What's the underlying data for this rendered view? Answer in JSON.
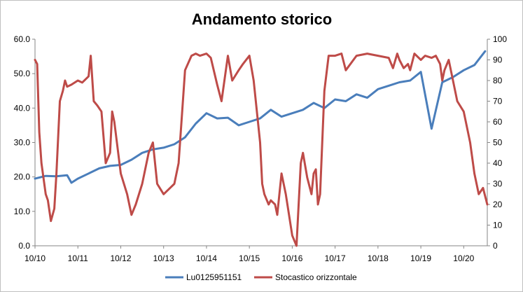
{
  "chart_data": {
    "type": "line",
    "title": "Andamento storico",
    "x_tick_labels": [
      "10/10",
      "10/11",
      "10/12",
      "10/13",
      "10/14",
      "10/15",
      "10/16",
      "10/17",
      "10/18",
      "10/19",
      "10/20"
    ],
    "x_range": [
      2010.75,
      2021.3
    ],
    "y_left": {
      "range": [
        0,
        60
      ],
      "ticks": [
        "0.0",
        "10.0",
        "20.0",
        "30.0",
        "40.0",
        "50.0",
        "60.0"
      ]
    },
    "y_right": {
      "range": [
        0,
        100
      ],
      "ticks": [
        "0",
        "10",
        "20",
        "30",
        "40",
        "50",
        "60",
        "70",
        "80",
        "90",
        "100"
      ]
    },
    "grid": false,
    "legend_position": "bottom",
    "series": [
      {
        "name": "Lu0125951151",
        "axis": "left",
        "color": "#4a7ebb",
        "x": [
          2010.75,
          2011.0,
          2011.25,
          2011.5,
          2011.6,
          2011.75,
          2012.0,
          2012.25,
          2012.5,
          2012.75,
          2013.0,
          2013.25,
          2013.5,
          2013.75,
          2014.0,
          2014.25,
          2014.5,
          2014.75,
          2015.0,
          2015.25,
          2015.5,
          2015.75,
          2016.0,
          2016.25,
          2016.5,
          2016.75,
          2017.0,
          2017.25,
          2017.5,
          2017.75,
          2018.0,
          2018.25,
          2018.5,
          2018.75,
          2019.0,
          2019.25,
          2019.5,
          2019.75,
          2020.0,
          2020.25,
          2020.5,
          2020.75,
          2021.0,
          2021.25
        ],
        "y": [
          19.5,
          20.3,
          20.2,
          20.5,
          18.3,
          19.5,
          21.0,
          22.5,
          23.2,
          23.5,
          25.0,
          27.0,
          28.0,
          28.5,
          29.5,
          31.5,
          35.5,
          38.5,
          37.0,
          37.2,
          35.0,
          36.0,
          37.0,
          39.5,
          37.5,
          38.5,
          39.5,
          41.5,
          40.0,
          42.5,
          42.0,
          44.0,
          43.0,
          45.5,
          46.5,
          47.5,
          48.0,
          50.5,
          34.0,
          47.5,
          49.0,
          51.0,
          52.5,
          56.5
        ]
      },
      {
        "name": "Stocastico orizzontale",
        "axis": "right",
        "color": "#be4b48",
        "x": [
          2010.75,
          2010.8,
          2010.85,
          2010.9,
          2011.0,
          2011.05,
          2011.12,
          2011.2,
          2011.25,
          2011.33,
          2011.4,
          2011.45,
          2011.5,
          2011.6,
          2011.75,
          2011.85,
          2012.0,
          2012.05,
          2012.12,
          2012.2,
          2012.3,
          2012.4,
          2012.5,
          2012.55,
          2012.6,
          2012.75,
          2012.9,
          2013.0,
          2013.1,
          2013.25,
          2013.4,
          2013.5,
          2013.6,
          2013.75,
          2013.9,
          2014.0,
          2014.1,
          2014.25,
          2014.4,
          2014.5,
          2014.6,
          2014.75,
          2014.85,
          2015.0,
          2015.1,
          2015.25,
          2015.35,
          2015.5,
          2015.6,
          2015.75,
          2015.85,
          2016.0,
          2016.05,
          2016.1,
          2016.2,
          2016.25,
          2016.35,
          2016.4,
          2016.5,
          2016.6,
          2016.75,
          2016.85,
          2016.95,
          2017.0,
          2017.1,
          2017.2,
          2017.25,
          2017.3,
          2017.35,
          2017.4,
          2017.5,
          2017.6,
          2017.75,
          2017.9,
          2018.0,
          2018.25,
          2018.5,
          2018.75,
          2019.0,
          2019.1,
          2019.2,
          2019.25,
          2019.35,
          2019.45,
          2019.5,
          2019.6,
          2019.75,
          2019.85,
          2020.0,
          2020.1,
          2020.2,
          2020.25,
          2020.3,
          2020.4,
          2020.5,
          2020.6,
          2020.75,
          2020.9,
          2021.0,
          2021.1,
          2021.2,
          2021.3
        ],
        "y": [
          90,
          88,
          55,
          40,
          25,
          22,
          12,
          18,
          35,
          70,
          75,
          80,
          77,
          78,
          80,
          79,
          82,
          92,
          70,
          68,
          65,
          40,
          45,
          65,
          60,
          35,
          25,
          15,
          20,
          30,
          45,
          50,
          30,
          25,
          28,
          30,
          40,
          85,
          92,
          93,
          92,
          93,
          91,
          78,
          70,
          92,
          80,
          85,
          88,
          92,
          80,
          50,
          30,
          25,
          20,
          22,
          20,
          15,
          35,
          25,
          5,
          0,
          40,
          45,
          33,
          25,
          35,
          37,
          20,
          25,
          75,
          92,
          92,
          93,
          85,
          92,
          93,
          92,
          91,
          86,
          93,
          90,
          86,
          88,
          85,
          93,
          90,
          92,
          91,
          92,
          88,
          80,
          85,
          90,
          80,
          70,
          65,
          50,
          35,
          25,
          28,
          20
        ]
      }
    ]
  }
}
